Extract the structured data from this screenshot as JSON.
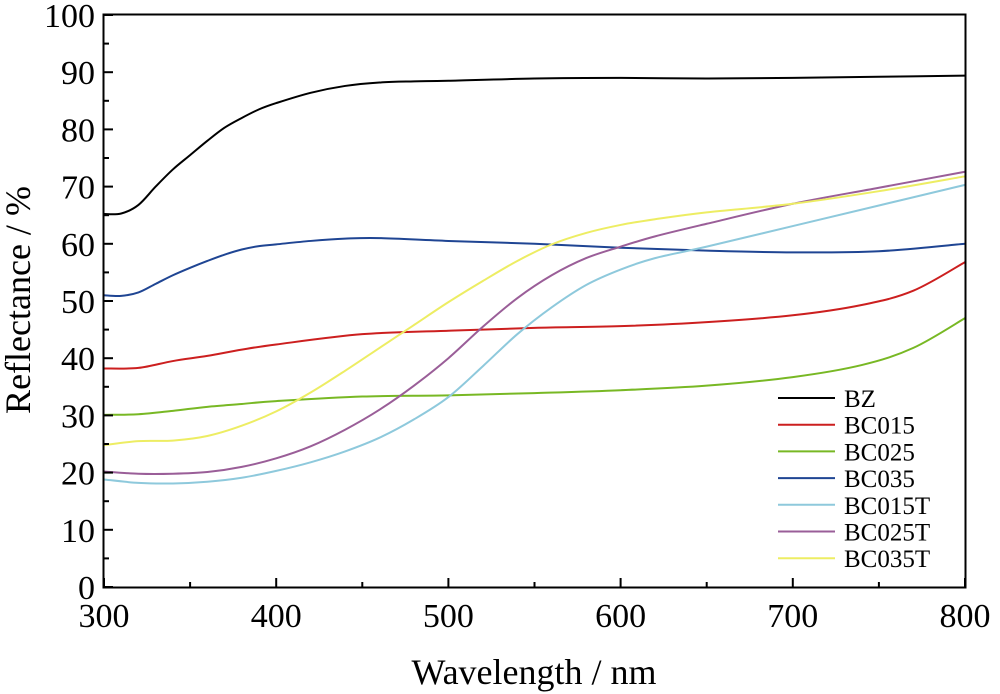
{
  "chart_data": {
    "type": "line",
    "xlabel": "Wavelength / nm",
    "ylabel": "Reflectance / %",
    "xlim": [
      300,
      800
    ],
    "ylim": [
      0,
      100
    ],
    "xticks": [
      300,
      400,
      500,
      600,
      700,
      800
    ],
    "yticks": [
      0,
      10,
      20,
      30,
      40,
      50,
      60,
      70,
      80,
      90,
      100
    ],
    "grid": false,
    "legend_position": "bottom-right",
    "series": [
      {
        "name": "BZ",
        "color": "#000000",
        "x": [
          300,
          310,
          320,
          330,
          340,
          350,
          360,
          370,
          380,
          390,
          400,
          420,
          440,
          460,
          480,
          500,
          550,
          600,
          650,
          700,
          750,
          800
        ],
        "y": [
          65.2,
          65.3,
          66.8,
          70,
          73,
          75.5,
          78,
          80.3,
          82,
          83.5,
          84.6,
          86.4,
          87.6,
          88.2,
          88.4,
          88.5,
          88.9,
          89,
          88.9,
          89,
          89.2,
          89.4
        ]
      },
      {
        "name": "BC015",
        "color": "#cc1f1f",
        "x": [
          300,
          320,
          340,
          360,
          380,
          400,
          450,
          500,
          550,
          600,
          650,
          700,
          740,
          770,
          800
        ],
        "y": [
          38.2,
          38.3,
          39.5,
          40.4,
          41.5,
          42.4,
          44.2,
          44.8,
          45.3,
          45.6,
          46.3,
          47.5,
          49.3,
          51.8,
          56.8
        ]
      },
      {
        "name": "BC025",
        "color": "#78b824",
        "x": [
          300,
          320,
          340,
          360,
          380,
          400,
          450,
          500,
          550,
          600,
          650,
          700,
          740,
          770,
          800
        ],
        "y": [
          30.1,
          30.2,
          30.8,
          31.5,
          32,
          32.5,
          33.3,
          33.5,
          33.9,
          34.4,
          35.2,
          36.7,
          38.8,
          41.8,
          47
        ]
      },
      {
        "name": "BC035",
        "color": "#1f4593",
        "x": [
          300,
          310,
          320,
          330,
          340,
          350,
          360,
          370,
          380,
          390,
          400,
          420,
          440,
          460,
          500,
          550,
          600,
          650,
          700,
          750,
          800
        ],
        "y": [
          51,
          50.9,
          51.5,
          53,
          54.5,
          55.8,
          57,
          58.1,
          59,
          59.6,
          59.9,
          60.5,
          60.9,
          61,
          60.5,
          60,
          59.3,
          58.8,
          58.5,
          58.7,
          60
        ]
      },
      {
        "name": "BC015T",
        "color": "#8ec9dc",
        "x": [
          300,
          320,
          340,
          360,
          380,
          400,
          420,
          440,
          460,
          480,
          500,
          520,
          540,
          560,
          580,
          600,
          620,
          650,
          700,
          750,
          800
        ],
        "y": [
          18.8,
          18.2,
          18.1,
          18.4,
          19.1,
          20.3,
          21.8,
          23.7,
          26.1,
          29.3,
          33.2,
          38.6,
          44.2,
          48.9,
          52.8,
          55.5,
          57.5,
          59.5,
          63.1,
          66.7,
          70.3
        ]
      },
      {
        "name": "BC025T",
        "color": "#9a5e98",
        "x": [
          300,
          320,
          340,
          360,
          380,
          400,
          420,
          440,
          460,
          480,
          500,
          520,
          540,
          560,
          580,
          600,
          620,
          650,
          700,
          750,
          800
        ],
        "y": [
          20.2,
          19.8,
          19.8,
          20.1,
          21,
          22.5,
          24.6,
          27.5,
          31,
          35.2,
          40,
          45.5,
          50.5,
          54.5,
          57.5,
          59.5,
          61.3,
          63.5,
          67,
          69.8,
          72.6
        ]
      },
      {
        "name": "BC035T",
        "color": "#eded63",
        "x": [
          300,
          320,
          340,
          360,
          380,
          400,
          420,
          440,
          460,
          480,
          500,
          520,
          540,
          560,
          580,
          600,
          620,
          650,
          700,
          750,
          800
        ],
        "y": [
          24.8,
          25.5,
          25.6,
          26.4,
          28.2,
          30.7,
          34,
          37.8,
          41.8,
          45.8,
          49.8,
          53.5,
          57,
          59.9,
          61.9,
          63.3,
          64.3,
          65.5,
          67,
          69.2,
          71.8
        ]
      }
    ]
  }
}
